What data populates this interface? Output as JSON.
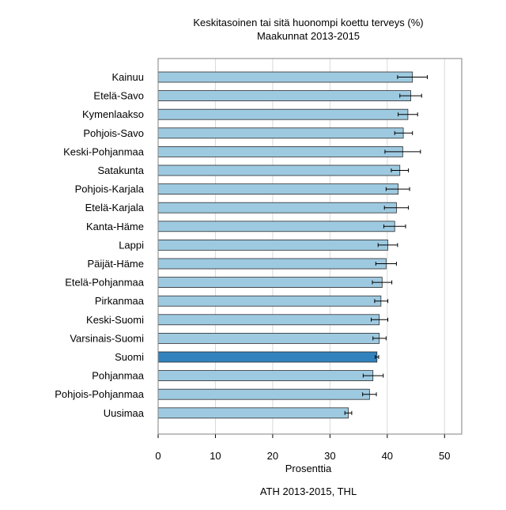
{
  "chart_data": {
    "type": "bar",
    "orientation": "horizontal",
    "title": "Keskitasoinen tai sitä huonompi koettu terveys (%)",
    "subtitle": "Maakunnat 2013-2015",
    "xlabel": "Prosenttia",
    "ylabel": "",
    "source": "ATH 2013-2015, THL",
    "xlim": [
      0,
      53
    ],
    "xticks": [
      0,
      10,
      20,
      30,
      40,
      50
    ],
    "grid": true,
    "colors": {
      "bar": "#9ecae1",
      "highlight": "#3182bd",
      "grid": "#d9d9d9",
      "frame": "#808080"
    },
    "highlight_category": "Suomi",
    "categories": [
      "Kainuu",
      "Etelä-Savo",
      "Kymenlaakso",
      "Pohjois-Savo",
      "Keski-Pohjanmaa",
      "Satakunta",
      "Pohjois-Karjala",
      "Etelä-Karjala",
      "Kanta-Häme",
      "Lappi",
      "Päijät-Häme",
      "Etelä-Pohjanmaa",
      "Pirkanmaa",
      "Keski-Suomi",
      "Varsinais-Suomi",
      "Suomi",
      "Pohjanmaa",
      "Pohjois-Pohjanmaa",
      "Uusimaa"
    ],
    "values": [
      44.4,
      44.1,
      43.6,
      42.8,
      42.7,
      42.2,
      41.9,
      41.6,
      41.3,
      40.1,
      39.8,
      39.1,
      38.9,
      38.6,
      38.6,
      38.2,
      37.5,
      36.9,
      33.2
    ],
    "ci_low": [
      41.8,
      42.2,
      41.9,
      41.3,
      39.6,
      40.7,
      39.8,
      39.5,
      39.4,
      38.4,
      38.0,
      37.4,
      37.8,
      37.2,
      37.5,
      37.9,
      35.8,
      35.7,
      32.6
    ],
    "ci_high": [
      47.0,
      46.0,
      45.3,
      44.4,
      45.8,
      43.7,
      43.9,
      43.7,
      43.2,
      41.8,
      41.6,
      40.8,
      40.1,
      40.1,
      39.8,
      38.5,
      39.3,
      38.1,
      33.8
    ]
  }
}
